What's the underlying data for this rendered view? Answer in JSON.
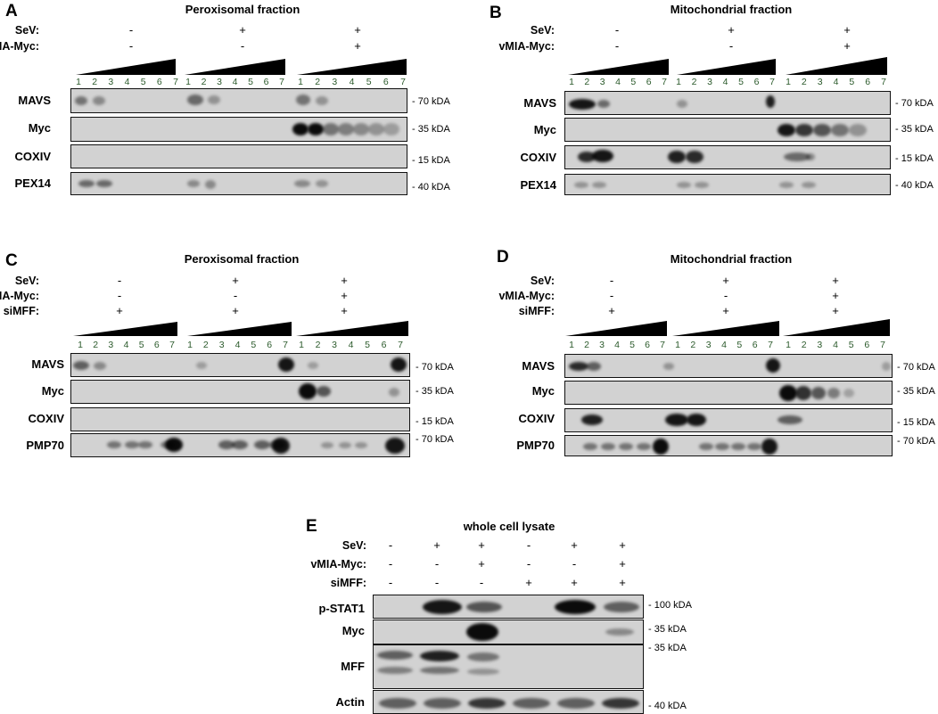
{
  "kda_prefix": "-",
  "panels": {
    "A": {
      "letter": "A",
      "title": "Peroxisomal fraction",
      "conditions": [
        {
          "label": "SeV:",
          "values": [
            "-",
            "+",
            "+"
          ]
        },
        {
          "label": "vMIA-Myc:",
          "values": [
            "-",
            "-",
            "+"
          ]
        }
      ],
      "lanes": [
        "1",
        "2",
        "3",
        "4",
        "5",
        "6",
        "7"
      ],
      "blots": [
        {
          "label": "MAVS",
          "kda": "70 kDA"
        },
        {
          "label": "Myc",
          "kda": "35 kDA"
        },
        {
          "label": "COXIV",
          "kda": "15 kDA"
        },
        {
          "label": "PEX14",
          "kda": "40 kDA"
        }
      ]
    },
    "B": {
      "letter": "B",
      "title": "Mitochondrial fraction",
      "conditions": [
        {
          "label": "SeV:",
          "values": [
            "-",
            "+",
            "+"
          ]
        },
        {
          "label": "vMIA-Myc:",
          "values": [
            "-",
            "-",
            "+"
          ]
        }
      ],
      "lanes": [
        "1",
        "2",
        "3",
        "4",
        "5",
        "6",
        "7"
      ],
      "blots": [
        {
          "label": "MAVS",
          "kda": "70 kDA"
        },
        {
          "label": "Myc",
          "kda": "35 kDA"
        },
        {
          "label": "COXIV",
          "kda": "15 kDA"
        },
        {
          "label": "PEX14",
          "kda": "40 kDA"
        }
      ]
    },
    "C": {
      "letter": "C",
      "title": "Peroxisomal fraction",
      "conditions": [
        {
          "label": "SeV:",
          "values": [
            "-",
            "+",
            "+"
          ]
        },
        {
          "label": "vMIA-Myc:",
          "values": [
            "-",
            "-",
            "+"
          ]
        },
        {
          "label": "siMFF:",
          "values": [
            "+",
            "+",
            "+"
          ]
        }
      ],
      "lanes": [
        "1",
        "2",
        "3",
        "4",
        "5",
        "6",
        "7"
      ],
      "blots": [
        {
          "label": "MAVS",
          "kda": "70 kDA"
        },
        {
          "label": "Myc",
          "kda": "35 kDA"
        },
        {
          "label": "COXIV",
          "kda": "15 kDA"
        },
        {
          "label": "PMP70",
          "kda": "70 kDA"
        }
      ]
    },
    "D": {
      "letter": "D",
      "title": "Mitochondrial fraction",
      "conditions": [
        {
          "label": "SeV:",
          "values": [
            "-",
            "+",
            "+"
          ]
        },
        {
          "label": "vMIA-Myc:",
          "values": [
            "-",
            "-",
            "+"
          ]
        },
        {
          "label": "siMFF:",
          "values": [
            "+",
            "+",
            "+"
          ]
        }
      ],
      "lanes": [
        "1",
        "2",
        "3",
        "4",
        "5",
        "6",
        "7"
      ],
      "blots": [
        {
          "label": "MAVS",
          "kda": "70 kDA"
        },
        {
          "label": "Myc",
          "kda": "35 kDA"
        },
        {
          "label": "COXIV",
          "kda": "15 kDA"
        },
        {
          "label": "PMP70",
          "kda": "70 kDA"
        }
      ]
    },
    "E": {
      "letter": "E",
      "title": "whole cell lysate",
      "conditions": [
        {
          "label": "SeV:",
          "values": [
            "-",
            "+",
            "+",
            "-",
            "+",
            "+"
          ]
        },
        {
          "label": "vMIA-Myc:",
          "values": [
            "-",
            "-",
            "+",
            "-",
            "-",
            "+"
          ]
        },
        {
          "label": "siMFF:",
          "values": [
            "-",
            "-",
            "-",
            "+",
            "+",
            "+"
          ]
        }
      ],
      "blots": [
        {
          "label": "p-STAT1",
          "kda": "100 kDA"
        },
        {
          "label": "Myc",
          "kda": "35 kDA"
        },
        {
          "label": "MFF",
          "kda": "35 kDA"
        },
        {
          "label": "Actin",
          "kda": "40 kDA"
        }
      ]
    }
  }
}
